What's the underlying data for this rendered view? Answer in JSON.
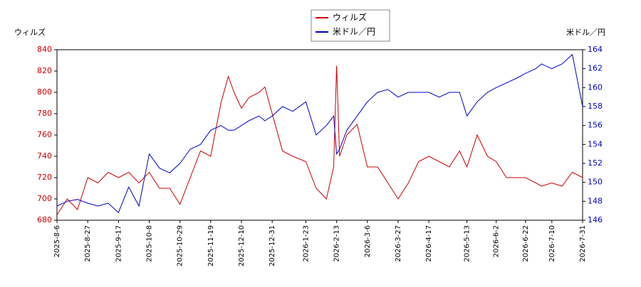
{
  "chart_data": {
    "type": "line",
    "y_label": "ウィルズ",
    "y2_label": "米ドル／円",
    "x": [
      "2025-8-6",
      "2025-8-13",
      "2025-8-20",
      "2025-8-27",
      "2025-9-3",
      "2025-9-10",
      "2025-9-17",
      "2025-9-24",
      "2025-10-1",
      "2025-10-8",
      "2025-10-15",
      "2025-10-22",
      "2025-10-29",
      "2025-11-5",
      "2025-11-12",
      "2025-11-19",
      "2025-11-26",
      "2025-12-1",
      "2025-12-5",
      "2025-12-10",
      "2025-12-15",
      "2025-12-22",
      "2025-12-26",
      "2025-12-31",
      "2026-1-7",
      "2026-1-14",
      "2026-1-23",
      "2026-1-30",
      "2026-2-6",
      "2026-2-11",
      "2026-2-13",
      "2026-2-15",
      "2026-2-20",
      "2026-2-27",
      "2026-3-6",
      "2026-3-13",
      "2026-3-20",
      "2026-3-27",
      "2026-4-3",
      "2026-4-10",
      "2026-4-17",
      "2026-4-24",
      "2026-5-1",
      "2026-5-8",
      "2026-5-13",
      "2026-5-20",
      "2026-5-27",
      "2026-6-2",
      "2026-6-9",
      "2026-6-16",
      "2026-6-22",
      "2026-6-29",
      "2026-7-3",
      "2026-7-10",
      "2026-7-17",
      "2026-7-24",
      "2026-7-31"
    ],
    "series": [
      {
        "name": "ウィルズ",
        "color": "#cc0000",
        "axis": "y",
        "values": [
          685,
          700,
          690,
          720,
          715,
          725,
          720,
          725,
          715,
          725,
          710,
          710,
          695,
          720,
          745,
          740,
          790,
          815,
          800,
          785,
          795,
          800,
          805,
          780,
          745,
          740,
          735,
          710,
          700,
          730,
          825,
          740,
          760,
          770,
          730,
          730,
          715,
          700,
          715,
          735,
          740,
          735,
          730,
          745,
          730,
          760,
          740,
          735,
          720,
          720,
          720,
          715,
          712,
          715,
          712,
          725,
          720
        ]
      },
      {
        "name": "米ドル／円",
        "color": "#0000cc",
        "axis": "y2",
        "values": [
          147.5,
          148,
          148.2,
          147.8,
          147.5,
          147.8,
          146.8,
          149.5,
          147.5,
          153,
          151.5,
          151,
          152,
          153.5,
          154,
          155.5,
          156,
          155.5,
          155.5,
          156,
          156.5,
          157,
          156.5,
          157,
          158,
          157.5,
          158.5,
          155,
          156,
          157,
          153,
          153.5,
          155.5,
          157,
          158.5,
          159.5,
          159.8,
          159,
          159.5,
          159.5,
          159.5,
          159,
          159.5,
          159.5,
          157,
          158.5,
          159.5,
          160,
          160.5,
          161,
          161.5,
          162,
          162.5,
          162,
          162.5,
          163.5,
          158
        ]
      }
    ],
    "xlim": [
      "2025-8-6",
      "2026-7-31"
    ],
    "xticks": [
      "2025-8-6",
      "2025-8-27",
      "2025-9-17",
      "2025-10-8",
      "2025-10-29",
      "2025-11-19",
      "2025-12-10",
      "2025-12-31",
      "2026-1-23",
      "2026-2-13",
      "2026-3-6",
      "2026-3-27",
      "2026-4-17",
      "2026-5-13",
      "2026-6-2",
      "2026-6-22",
      "2026-7-10",
      "2026-7-31"
    ],
    "ylim": [
      680,
      840
    ],
    "yticks": [
      680,
      700,
      720,
      740,
      760,
      780,
      800,
      820,
      840
    ],
    "y2lim": [
      146,
      164
    ],
    "y2ticks": [
      146,
      148,
      150,
      152,
      154,
      156,
      158,
      160,
      162,
      164
    ],
    "grid": false
  }
}
